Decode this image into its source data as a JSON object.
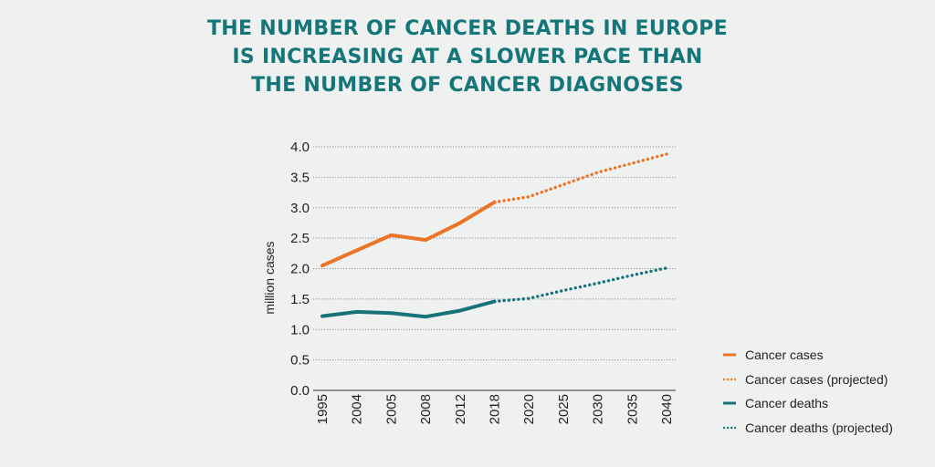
{
  "title": {
    "lines": [
      "THE NUMBER OF CANCER DEATHS IN EUROPE",
      "IS INCREASING AT A SLOWER PACE THAN",
      "THE NUMBER OF CANCER DIAGNOSES"
    ]
  },
  "colors": {
    "title": "#15767a",
    "cases": "#ec7426",
    "deaths": "#17737a",
    "grid": "#8f8f8f",
    "background": "#eff0f0"
  },
  "legend": {
    "items": [
      {
        "label": "Cancer cases",
        "series": "cases",
        "style": "solid"
      },
      {
        "label": "Cancer cases (projected)",
        "series": "cases",
        "style": "dotted"
      },
      {
        "label": "Cancer deaths",
        "series": "deaths",
        "style": "solid"
      },
      {
        "label": "Cancer deaths (projected)",
        "series": "deaths",
        "style": "dotted"
      }
    ]
  },
  "chart_data": {
    "type": "line",
    "title": "THE NUMBER OF CANCER DEATHS IN EUROPE IS INCREASING AT A SLOWER PACE THAN THE NUMBER OF CANCER DIAGNOSES",
    "xlabel": "",
    "ylabel": "million cases",
    "categories": [
      "1995",
      "2004",
      "2005",
      "2008",
      "2012",
      "2018",
      "2020",
      "2025",
      "2030",
      "2035",
      "2040"
    ],
    "yticks": [
      "0.0",
      "0.5",
      "1.0",
      "1.5",
      "2.0",
      "2.5",
      "3.0",
      "3.5",
      "4.0"
    ],
    "ylim": [
      0,
      4.0
    ],
    "grid": true,
    "legend_position": "bottom-right",
    "series": [
      {
        "name": "Cancer cases",
        "key": "cases",
        "style": "solid",
        "values": [
          2.05,
          2.3,
          2.55,
          2.47,
          2.75,
          3.09,
          null,
          null,
          null,
          null,
          null
        ]
      },
      {
        "name": "Cancer cases (projected)",
        "key": "cases",
        "style": "dotted",
        "values": [
          null,
          null,
          null,
          null,
          null,
          3.09,
          3.18,
          3.38,
          3.58,
          3.73,
          3.88
        ]
      },
      {
        "name": "Cancer deaths",
        "key": "deaths",
        "style": "solid",
        "values": [
          1.22,
          1.29,
          1.27,
          1.21,
          1.31,
          1.46,
          null,
          null,
          null,
          null,
          null
        ]
      },
      {
        "name": "Cancer deaths (projected)",
        "key": "deaths",
        "style": "dotted",
        "values": [
          null,
          null,
          null,
          null,
          null,
          1.46,
          1.51,
          1.64,
          1.76,
          1.89,
          2.01
        ]
      }
    ]
  }
}
